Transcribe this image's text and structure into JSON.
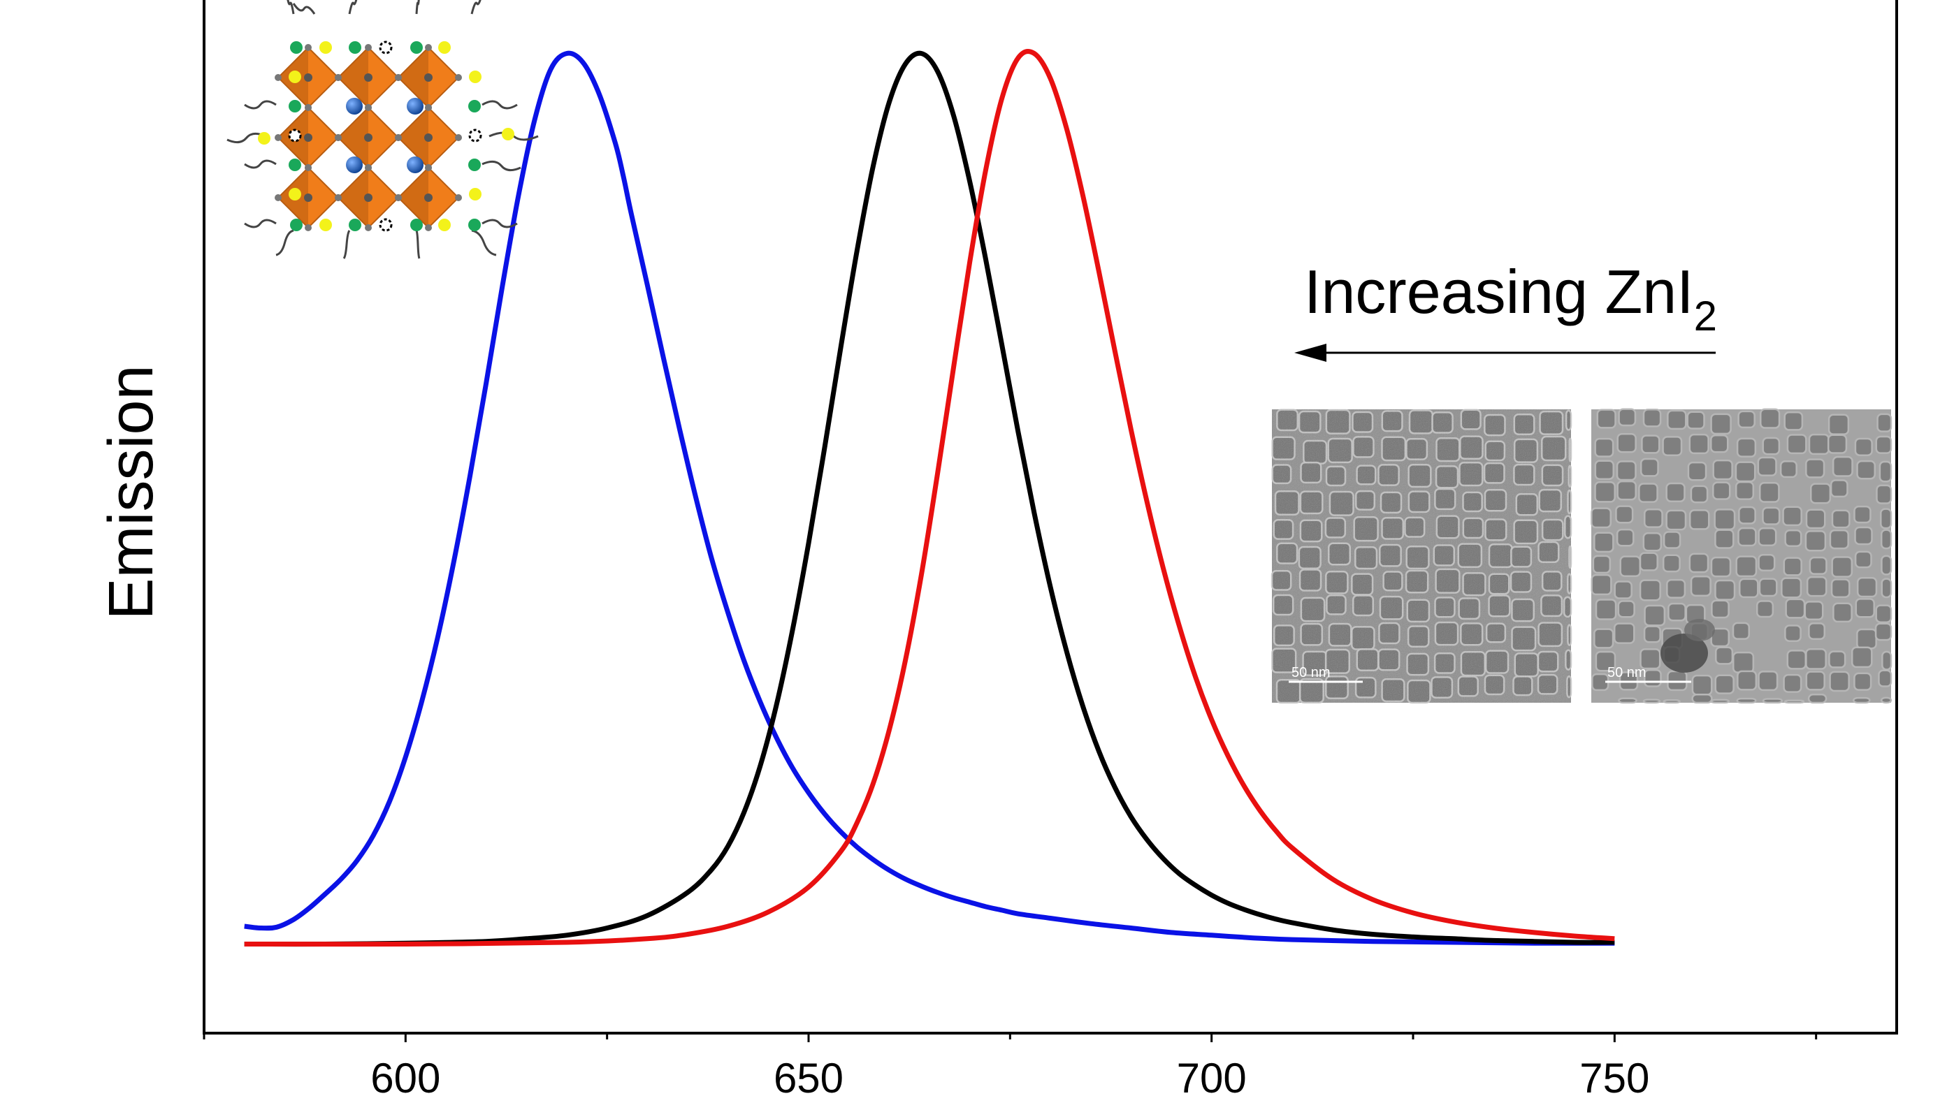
{
  "chart_data": {
    "type": "line",
    "title": "",
    "xlabel": "",
    "ylabel": "Emission",
    "xlim": [
      575,
      785
    ],
    "ylim": [
      -0.1,
      1.06
    ],
    "x_ticks": [
      600,
      650,
      700,
      750
    ],
    "x_minor_ticks": [
      575,
      625,
      675,
      725,
      775
    ],
    "grid": false,
    "series": [
      {
        "name": "blue",
        "color": "#0a12e6",
        "x": [
          580,
          582,
          584,
          586,
          588,
          590,
          592,
          594,
          596,
          598,
          600,
          602,
          604,
          606,
          608,
          610,
          612,
          614,
          616,
          618,
          620,
          622,
          624,
          626,
          627,
          628,
          630,
          632,
          634,
          636,
          638,
          640,
          642,
          644,
          646,
          648,
          650,
          652,
          654,
          656,
          658,
          660,
          662,
          664,
          666,
          668,
          670,
          672,
          674,
          676,
          680,
          685,
          690,
          695,
          700,
          705,
          710,
          720,
          730,
          740,
          750
        ],
        "y": [
          0.02,
          0.018,
          0.019,
          0.027,
          0.04,
          0.056,
          0.073,
          0.094,
          0.122,
          0.16,
          0.21,
          0.272,
          0.345,
          0.43,
          0.526,
          0.63,
          0.738,
          0.84,
          0.925,
          0.982,
          1.0,
          0.99,
          0.955,
          0.9,
          0.863,
          0.82,
          0.74,
          0.658,
          0.578,
          0.502,
          0.432,
          0.372,
          0.318,
          0.272,
          0.232,
          0.198,
          0.17,
          0.146,
          0.126,
          0.109,
          0.095,
          0.083,
          0.073,
          0.065,
          0.058,
          0.052,
          0.047,
          0.042,
          0.038,
          0.034,
          0.029,
          0.023,
          0.018,
          0.013,
          0.01,
          0.007,
          0.005,
          0.003,
          0.002,
          0.001,
          0.001
        ]
      },
      {
        "name": "black",
        "color": "#000000",
        "x": [
          580,
          590,
          600,
          610,
          615,
          620,
          625,
          630,
          635,
          638,
          640,
          642,
          644,
          646,
          648,
          650,
          652,
          654,
          656,
          658,
          660,
          662,
          664,
          666,
          668,
          670,
          672,
          674,
          676,
          678,
          680,
          682,
          684,
          686,
          688,
          690,
          692,
          694,
          696,
          698,
          700,
          702,
          704,
          706,
          708,
          710,
          715,
          720,
          725,
          730,
          735,
          740,
          745,
          750
        ],
        "y": [
          0.0,
          0.0,
          0.001,
          0.003,
          0.006,
          0.01,
          0.018,
          0.032,
          0.058,
          0.084,
          0.11,
          0.148,
          0.2,
          0.268,
          0.352,
          0.45,
          0.558,
          0.67,
          0.778,
          0.873,
          0.945,
          0.988,
          1.0,
          0.98,
          0.93,
          0.856,
          0.768,
          0.672,
          0.575,
          0.484,
          0.401,
          0.329,
          0.268,
          0.217,
          0.176,
          0.143,
          0.117,
          0.096,
          0.079,
          0.066,
          0.055,
          0.046,
          0.039,
          0.033,
          0.028,
          0.024,
          0.016,
          0.011,
          0.008,
          0.006,
          0.004,
          0.003,
          0.002,
          0.002
        ]
      },
      {
        "name": "red",
        "color": "#e81010",
        "x": [
          580,
          600,
          620,
          630,
          635,
          640,
          645,
          650,
          654,
          656,
          658,
          660,
          662,
          664,
          666,
          668,
          670,
          672,
          674,
          676,
          678,
          680,
          682,
          684,
          686,
          688,
          690,
          692,
          694,
          696,
          698,
          700,
          702,
          704,
          706,
          708,
          710,
          715,
          720,
          725,
          730,
          735,
          740,
          745,
          750
        ],
        "y": [
          0.0,
          0.0,
          0.002,
          0.006,
          0.011,
          0.02,
          0.036,
          0.064,
          0.104,
          0.136,
          0.18,
          0.24,
          0.318,
          0.415,
          0.528,
          0.648,
          0.766,
          0.87,
          0.95,
          0.995,
          1.0,
          0.972,
          0.916,
          0.842,
          0.756,
          0.666,
          0.578,
          0.496,
          0.422,
          0.357,
          0.3,
          0.252,
          0.212,
          0.178,
          0.15,
          0.127,
          0.108,
          0.073,
          0.05,
          0.035,
          0.025,
          0.018,
          0.013,
          0.009,
          0.006
        ]
      }
    ],
    "annotations": {
      "arrow_label": "Increasing ZnI",
      "arrow_label_subscript": "2",
      "arrow_direction": "left",
      "scale_bar_left": "50 nm",
      "scale_bar_right": "50 nm"
    }
  },
  "colors": {
    "orange": "#f07d1a",
    "orange_dark": "#b85c10",
    "ligand_green": "#1aa85a",
    "ligand_yellow": "#f3f21a",
    "cation_blue": "#1e5bb8"
  }
}
